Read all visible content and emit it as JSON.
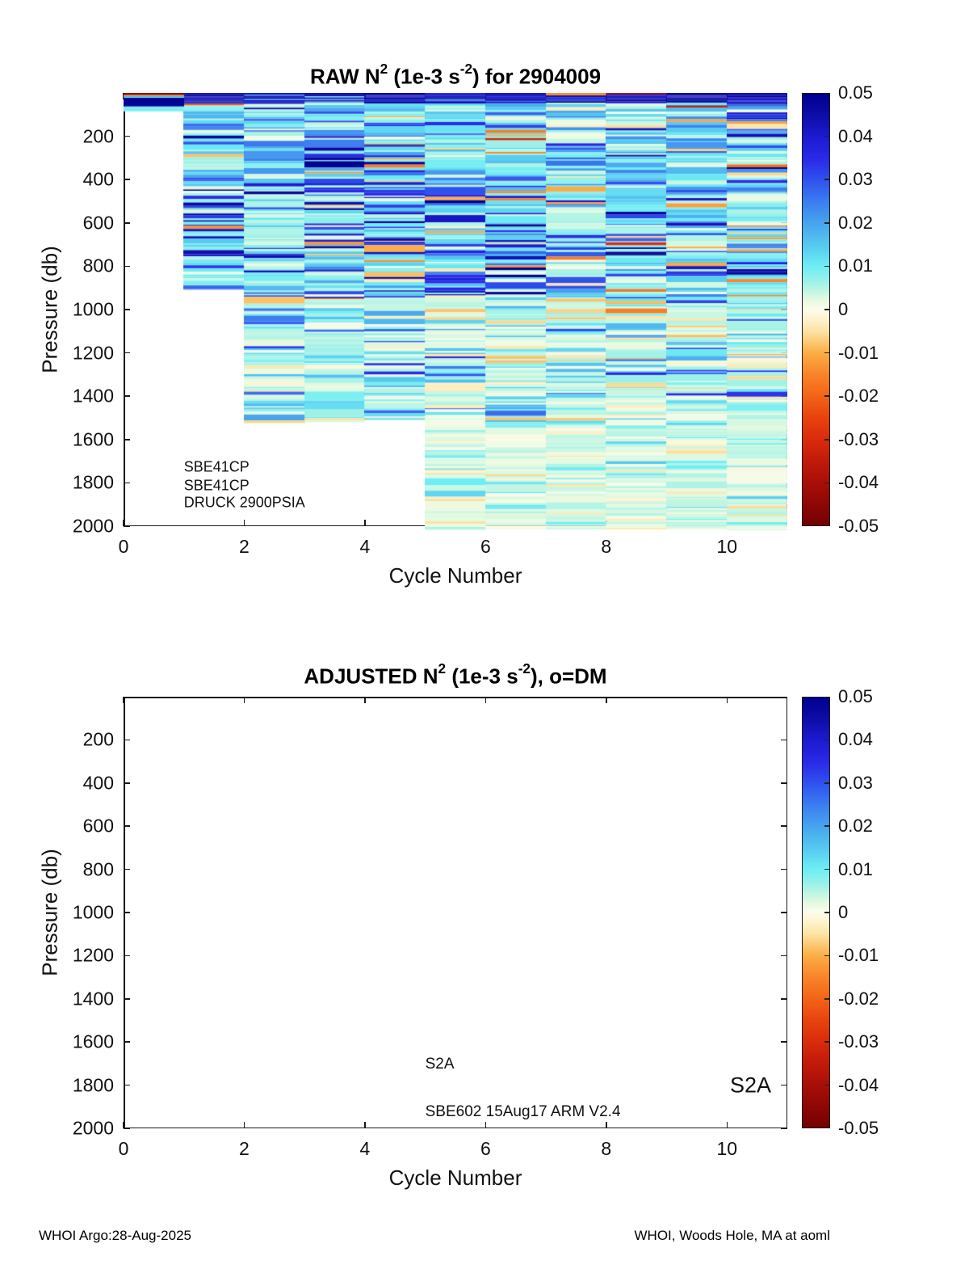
{
  "figure": {
    "footer_left": "WHOI Argo:28-Aug-2025",
    "footer_right": "WHOI, Woods Hole, MA at aoml"
  },
  "colormap": {
    "stops": [
      [
        -0.05,
        "#730101"
      ],
      [
        -0.045,
        "#8f0704"
      ],
      [
        -0.04,
        "#a80f08"
      ],
      [
        -0.035,
        "#c21a0a"
      ],
      [
        -0.03,
        "#d92c0c"
      ],
      [
        -0.025,
        "#e8430e"
      ],
      [
        -0.02,
        "#f26417"
      ],
      [
        -0.015,
        "#f9842a"
      ],
      [
        -0.01,
        "#fbae45"
      ],
      [
        -0.005,
        "#fce3a4"
      ],
      [
        -0.002,
        "#fdf4cf"
      ],
      [
        0,
        "#fdfceb"
      ],
      [
        0.002,
        "#e8fae0"
      ],
      [
        0.004,
        "#c6f6e2"
      ],
      [
        0.007,
        "#96f0ea"
      ],
      [
        0.01,
        "#6feef4"
      ],
      [
        0.015,
        "#55c8ef"
      ],
      [
        0.02,
        "#47a4ee"
      ],
      [
        0.025,
        "#3c7cf0"
      ],
      [
        0.03,
        "#2f52ee"
      ],
      [
        0.035,
        "#2929e8"
      ],
      [
        0.04,
        "#1b1bd0"
      ],
      [
        0.045,
        "#0d0da8"
      ],
      [
        0.05,
        "#00008f"
      ]
    ]
  },
  "chart_data": [
    {
      "id": "raw",
      "type": "heatmap",
      "title": {
        "prefix": "RAW N",
        "sup1": "2",
        "mid": " (1e-3 s",
        "sup2": "-2",
        "suffix": ") for 2904009"
      },
      "xlabel": "Cycle Number",
      "ylabel": "Pressure (db)",
      "xlim": [
        0,
        11
      ],
      "ylim": [
        0,
        2000
      ],
      "y_axis_reversed": true,
      "grid": false,
      "xticks": [
        0,
        2,
        4,
        6,
        8,
        10
      ],
      "yticks": [
        200,
        400,
        600,
        800,
        1000,
        1200,
        1400,
        1600,
        1800,
        2000
      ],
      "colorbar": {
        "vmin": -0.05,
        "vmax": 0.05,
        "tick_values": [
          0.05,
          0.04,
          0.03,
          0.02,
          0.01,
          0,
          -0.01,
          -0.02,
          -0.03,
          -0.04,
          -0.05
        ],
        "tick_labels": [
          "0.05",
          "0.04",
          "0.03",
          "0.02",
          "0.01",
          "0",
          "-0.01",
          "-0.02",
          "-0.03",
          "-0.04",
          "-0.05"
        ],
        "position": "right"
      },
      "columns": [
        {
          "cycle": 0,
          "p_top": 0,
          "p_bottom": 85,
          "seed": 7
        },
        {
          "cycle": 1,
          "p_top": 0,
          "p_bottom": 905,
          "seed": 13
        },
        {
          "cycle": 2,
          "p_top": 0,
          "p_bottom": 1525,
          "seed": 21
        },
        {
          "cycle": 3,
          "p_top": 0,
          "p_bottom": 1520,
          "seed": 34
        },
        {
          "cycle": 4,
          "p_top": 0,
          "p_bottom": 1512,
          "seed": 55
        },
        {
          "cycle": 5,
          "p_top": 0,
          "p_bottom": 2015,
          "seed": 89
        },
        {
          "cycle": 6,
          "p_top": 0,
          "p_bottom": 2015,
          "seed": 144
        },
        {
          "cycle": 7,
          "p_top": 0,
          "p_bottom": 2015,
          "seed": 233
        },
        {
          "cycle": 8,
          "p_top": 0,
          "p_bottom": 2015,
          "seed": 377
        },
        {
          "cycle": 9,
          "p_top": 0,
          "p_bottom": 2015,
          "seed": 610
        },
        {
          "cycle": 10,
          "p_top": 0,
          "p_bottom": 2015,
          "seed": 987
        }
      ],
      "features": [
        {
          "cycle": 0,
          "p": 0,
          "h_db": 8,
          "value": -0.046
        },
        {
          "cycle": 0,
          "p": 9,
          "h_db": 6,
          "value": -0.012
        },
        {
          "cycle": 0,
          "p": 16,
          "h_db": 7,
          "value": 0.012
        },
        {
          "cycle": 0,
          "p": 24,
          "h_db": 38,
          "value": 0.049
        },
        {
          "cycle": 7,
          "p": 0,
          "h_db": 11,
          "value": -0.013
        },
        {
          "cycle": 8,
          "p": 0,
          "h_db": 5,
          "value": -0.035
        },
        {
          "cycle": 9,
          "p": 58,
          "h_db": 9,
          "value": -0.034
        },
        {
          "cycle": 8,
          "p": 995,
          "h_db": 22,
          "value": -0.016
        },
        {
          "cycle": 10,
          "p": 722,
          "h_db": 9,
          "value": -0.012
        }
      ],
      "annotations": [
        {
          "text": "SBE41CP",
          "cycle": 1,
          "pressure": 1728,
          "size": 18
        },
        {
          "text": "SBE41CP",
          "cycle": 1,
          "pressure": 1812,
          "size": 18
        },
        {
          "text": "DRUCK 2900PSIA",
          "cycle": 1,
          "pressure": 1893,
          "size": 18
        }
      ]
    },
    {
      "id": "adjusted",
      "type": "heatmap",
      "title": {
        "prefix": "ADJUSTED N",
        "sup1": "2",
        "mid": " (1e-3 s",
        "sup2": "-2",
        "suffix": "), o=DM"
      },
      "xlabel": "Cycle Number",
      "ylabel": "Pressure (db)",
      "xlim": [
        0,
        11
      ],
      "ylim": [
        0,
        2000
      ],
      "y_axis_reversed": true,
      "grid": false,
      "xticks": [
        0,
        2,
        4,
        6,
        8,
        10
      ],
      "yticks": [
        200,
        400,
        600,
        800,
        1000,
        1200,
        1400,
        1600,
        1800,
        2000
      ],
      "colorbar": {
        "vmin": -0.05,
        "vmax": 0.05,
        "tick_values": [
          0.05,
          0.04,
          0.03,
          0.02,
          0.01,
          0,
          -0.01,
          -0.02,
          -0.03,
          -0.04,
          -0.05
        ],
        "tick_labels": [
          "0.05",
          "0.04",
          "0.03",
          "0.02",
          "0.01",
          "0",
          "-0.01",
          "-0.02",
          "-0.03",
          "-0.04",
          "-0.05"
        ],
        "position": "right"
      },
      "columns": [],
      "features": [],
      "annotations": [
        {
          "text": "S2A",
          "cycle": 5,
          "pressure": 1705,
          "size": 19
        },
        {
          "text": "SBE602 15Aug17 ARM V2.4",
          "cycle": 5,
          "pressure": 1925,
          "size": 19
        },
        {
          "text": "S2A",
          "cycle": 10.05,
          "pressure": 1800,
          "size": 27
        }
      ]
    }
  ]
}
